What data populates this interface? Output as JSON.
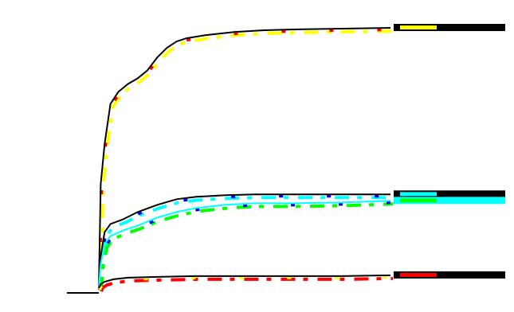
{
  "chart_data": {
    "type": "line",
    "title": "",
    "xlabel": "",
    "ylabel": "",
    "x_ticks": [
      "",
      "",
      "",
      ""
    ],
    "y_ticks": [
      "",
      "",
      "",
      "",
      "",
      ""
    ],
    "x_range": [
      0,
      300
    ],
    "y_range": [
      0,
      330
    ],
    "series": [
      {
        "label": "",
        "line_color": "#000000",
        "accents": [
          "#ffff00",
          "#ff0000"
        ],
        "points": [
          [
            0,
            0
          ],
          [
            2,
            130
          ],
          [
            6,
            180
          ],
          [
            12,
            230
          ],
          [
            20,
            245
          ],
          [
            30,
            255
          ],
          [
            40,
            262
          ],
          [
            50,
            272
          ],
          [
            60,
            288
          ],
          [
            70,
            300
          ],
          [
            80,
            308
          ],
          [
            90,
            312
          ],
          [
            110,
            316
          ],
          [
            140,
            320
          ],
          [
            170,
            322
          ],
          [
            200,
            323
          ],
          [
            250,
            324
          ],
          [
            300,
            325
          ]
        ]
      },
      {
        "label": "",
        "line_color": "#000000",
        "accents": [
          "#00ffff",
          "#0000ff"
        ],
        "points": [
          [
            0,
            0
          ],
          [
            2,
            40
          ],
          [
            6,
            70
          ],
          [
            12,
            80
          ],
          [
            25,
            86
          ],
          [
            40,
            95
          ],
          [
            60,
            104
          ],
          [
            80,
            111
          ],
          [
            100,
            114
          ],
          [
            130,
            116
          ],
          [
            160,
            117
          ],
          [
            200,
            117
          ],
          [
            250,
            117
          ],
          [
            300,
            117
          ]
        ]
      },
      {
        "label": "",
        "line_color": "#00ffff",
        "accents": [
          "#00ff00",
          "#0000ff"
        ],
        "points": [
          [
            0,
            0
          ],
          [
            2,
            30
          ],
          [
            6,
            55
          ],
          [
            12,
            65
          ],
          [
            25,
            72
          ],
          [
            40,
            78
          ],
          [
            60,
            88
          ],
          [
            80,
            95
          ],
          [
            100,
            100
          ],
          [
            130,
            104
          ],
          [
            160,
            106
          ],
          [
            200,
            106
          ],
          [
            250,
            107
          ],
          [
            300,
            109
          ]
        ]
      },
      {
        "label": "",
        "line_color": "#000000",
        "accents": [
          "#ff0000",
          "#ffff00"
        ],
        "points": [
          [
            0,
            0
          ],
          [
            2,
            5
          ],
          [
            6,
            8
          ],
          [
            15,
            11
          ],
          [
            30,
            13
          ],
          [
            60,
            14
          ],
          [
            100,
            15
          ],
          [
            150,
            15
          ],
          [
            200,
            15
          ],
          [
            250,
            15
          ],
          [
            300,
            16
          ]
        ]
      }
    ]
  }
}
